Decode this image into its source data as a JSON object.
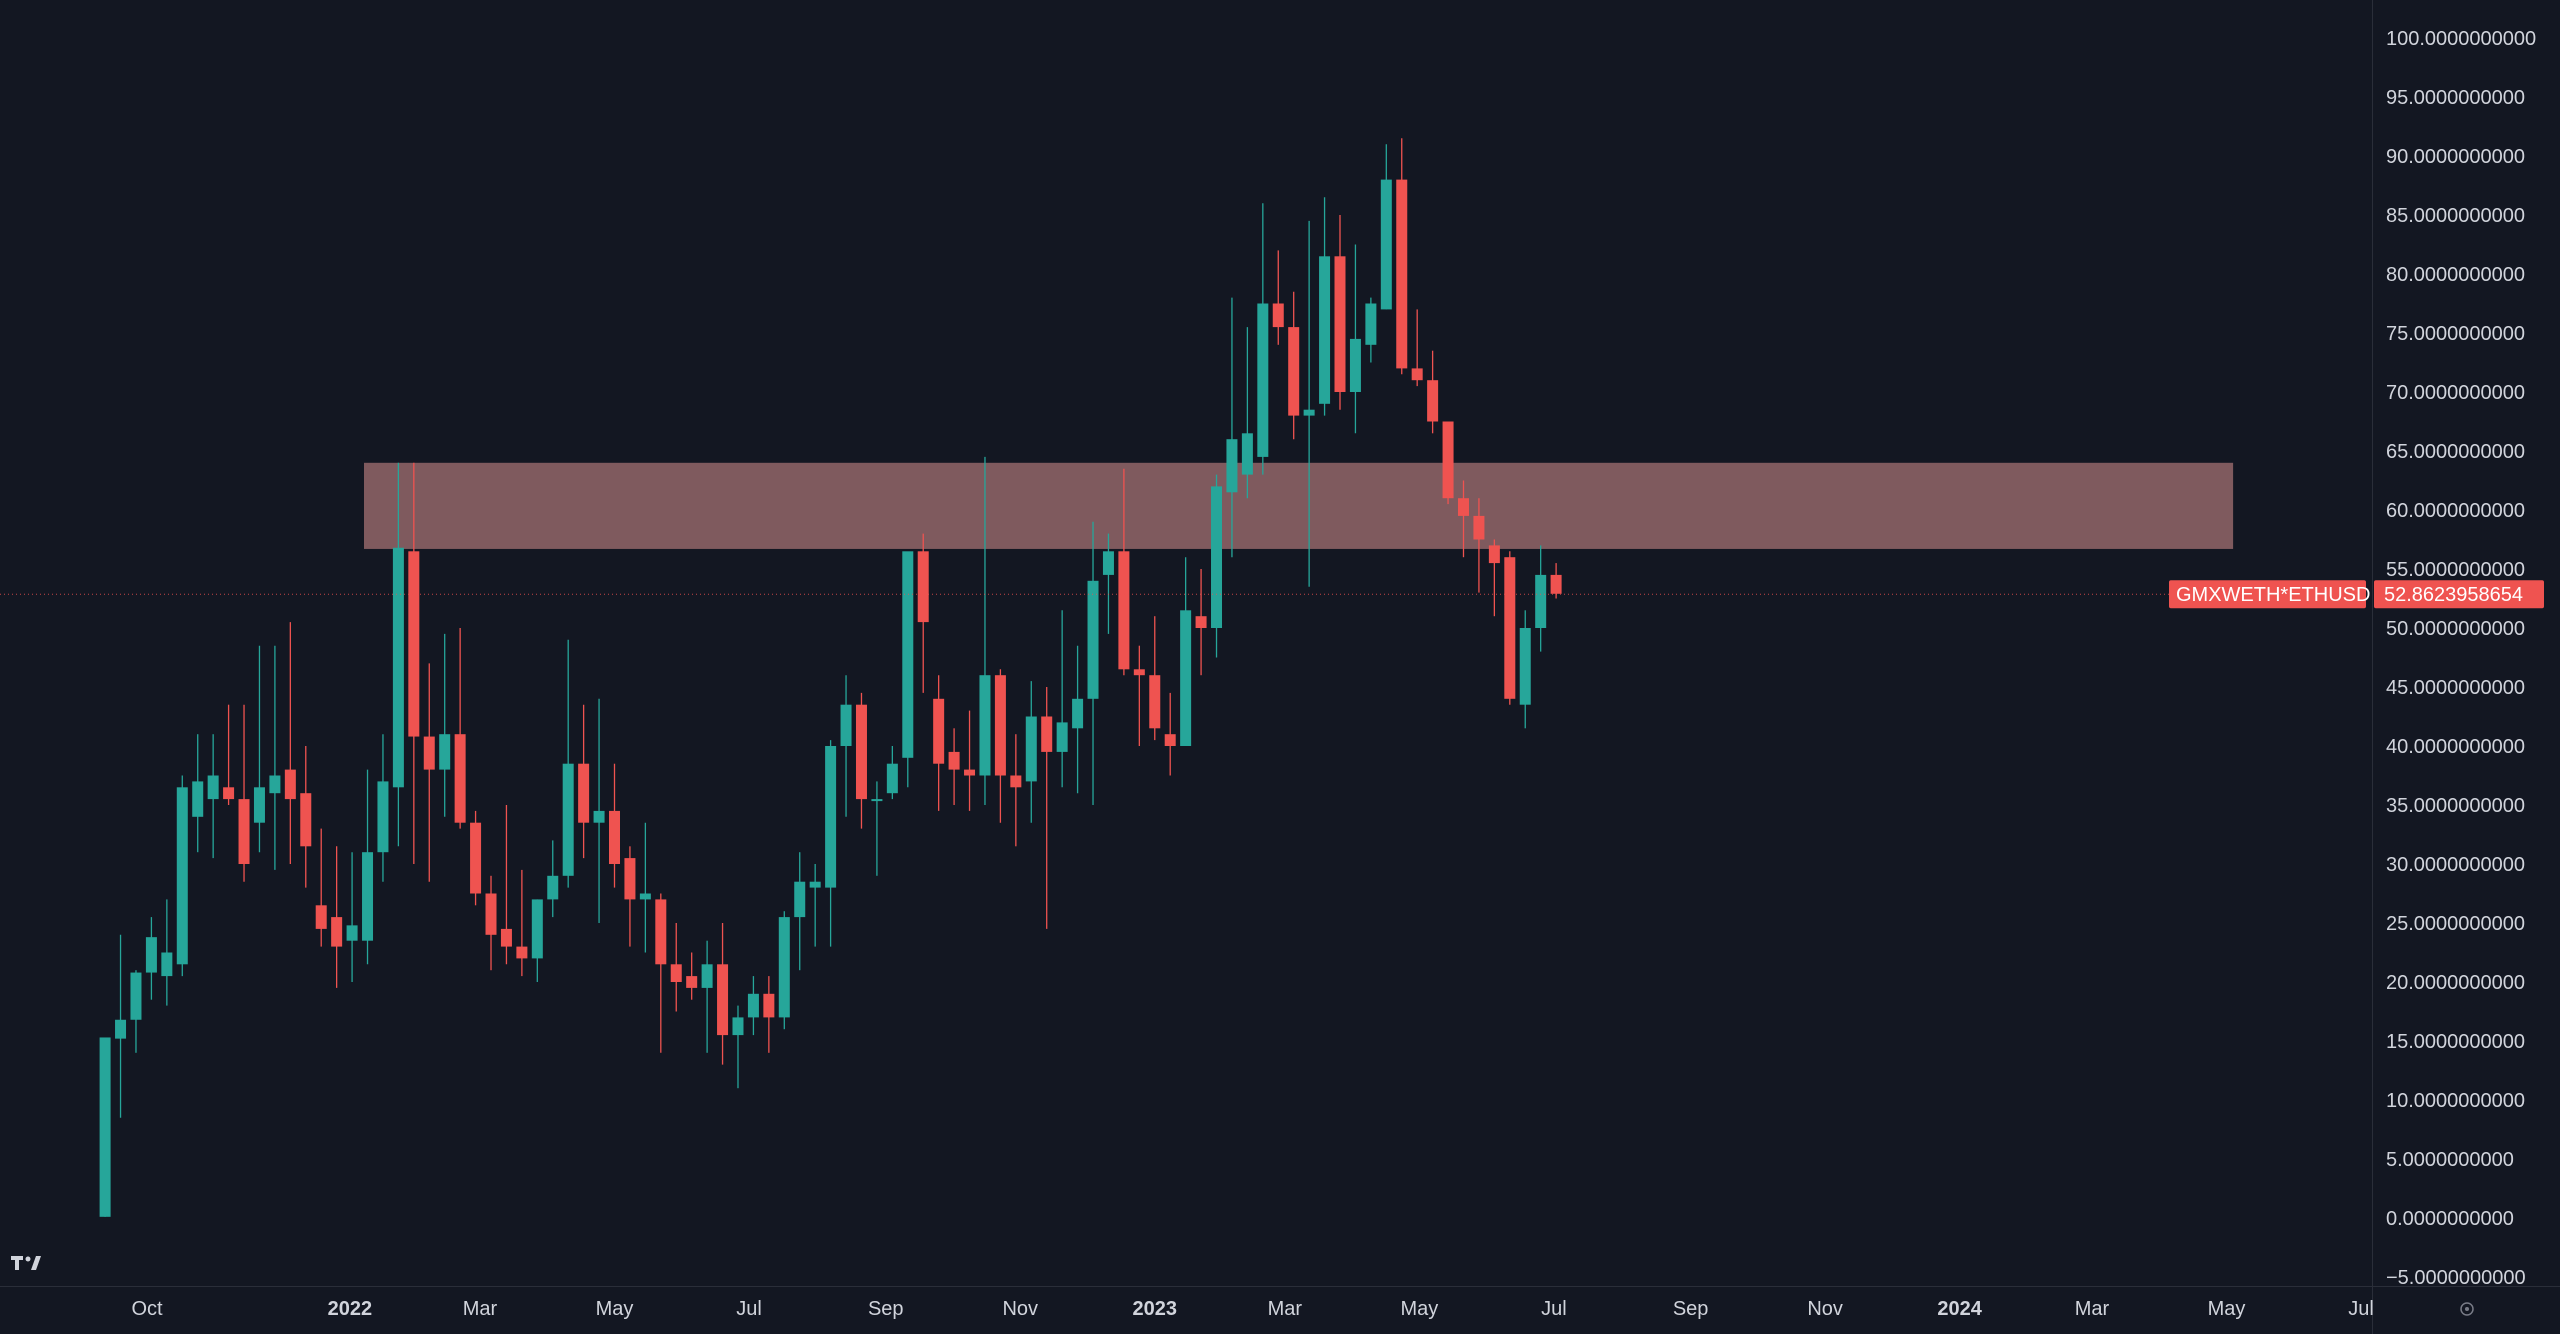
{
  "chart_data": {
    "type": "candlestick",
    "symbol": "GMXWETH*ETHUSD",
    "last_price_label": "52.8623958654",
    "last_price": 52.8623958654,
    "ylim": [
      -5,
      100
    ],
    "y_ticks": [
      {
        "value": 100,
        "label": "100.0000000000"
      },
      {
        "value": 95,
        "label": "95.0000000000"
      },
      {
        "value": 90,
        "label": "90.0000000000"
      },
      {
        "value": 85,
        "label": "85.0000000000"
      },
      {
        "value": 80,
        "label": "80.0000000000"
      },
      {
        "value": 75,
        "label": "75.0000000000"
      },
      {
        "value": 70,
        "label": "70.0000000000"
      },
      {
        "value": 65,
        "label": "65.0000000000"
      },
      {
        "value": 60,
        "label": "60.0000000000"
      },
      {
        "value": 55,
        "label": "55.0000000000"
      },
      {
        "value": 50,
        "label": "50.0000000000"
      },
      {
        "value": 45,
        "label": "45.0000000000"
      },
      {
        "value": 40,
        "label": "40.0000000000"
      },
      {
        "value": 35,
        "label": "35.0000000000"
      },
      {
        "value": 30,
        "label": "30.0000000000"
      },
      {
        "value": 25,
        "label": "25.0000000000"
      },
      {
        "value": 20,
        "label": "20.0000000000"
      },
      {
        "value": 15,
        "label": "15.0000000000"
      },
      {
        "value": 10,
        "label": "10.0000000000"
      },
      {
        "value": 5,
        "label": "5.0000000000"
      },
      {
        "value": 0,
        "label": "0.0000000000"
      },
      {
        "value": -5,
        "label": "−5.0000000000"
      }
    ],
    "x_ticks": [
      {
        "date": "2021-10-01",
        "label": "Oct",
        "bold": false
      },
      {
        "date": "2022-01-01",
        "label": "2022",
        "bold": true
      },
      {
        "date": "2022-03-01",
        "label": "Mar",
        "bold": false
      },
      {
        "date": "2022-05-01",
        "label": "May",
        "bold": false
      },
      {
        "date": "2022-07-01",
        "label": "Jul",
        "bold": false
      },
      {
        "date": "2022-09-01",
        "label": "Sep",
        "bold": false
      },
      {
        "date": "2022-11-01",
        "label": "Nov",
        "bold": false
      },
      {
        "date": "2023-01-01",
        "label": "2023",
        "bold": true
      },
      {
        "date": "2023-03-01",
        "label": "Mar",
        "bold": false
      },
      {
        "date": "2023-05-01",
        "label": "May",
        "bold": false
      },
      {
        "date": "2023-07-01",
        "label": "Jul",
        "bold": false
      },
      {
        "date": "2023-09-01",
        "label": "Sep",
        "bold": false
      },
      {
        "date": "2023-11-01",
        "label": "Nov",
        "bold": false
      },
      {
        "date": "2024-01-01",
        "label": "2024",
        "bold": true
      },
      {
        "date": "2024-03-01",
        "label": "Mar",
        "bold": false
      },
      {
        "date": "2024-05-01",
        "label": "May",
        "bold": false
      },
      {
        "date": "2024-07-01",
        "label": "Jul",
        "bold": false
      }
    ],
    "zone": {
      "y_low": 56.7,
      "y_high": 64.0,
      "x_start": "2022-01-01",
      "x_end": "2024-05-04",
      "color": "#f28b86"
    },
    "colors": {
      "up": "#26a69a",
      "down": "#ef5350",
      "background": "#131722",
      "zone": "#7f5a5e",
      "text": "#d1d4dc"
    },
    "candles": [
      {
        "date": "2021-09-12",
        "o": 0.1,
        "h": 15.3,
        "l": 0.1,
        "c": 15.3
      },
      {
        "date": "2021-09-19",
        "o": 15.2,
        "h": 24.0,
        "l": 8.5,
        "c": 16.8
      },
      {
        "date": "2021-09-26",
        "o": 16.8,
        "h": 21.0,
        "l": 14.0,
        "c": 20.8
      },
      {
        "date": "2021-10-03",
        "o": 20.8,
        "h": 25.5,
        "l": 18.5,
        "c": 23.8
      },
      {
        "date": "2021-10-10",
        "o": 20.5,
        "h": 27.0,
        "l": 18.0,
        "c": 22.5
      },
      {
        "date": "2021-10-17",
        "o": 21.5,
        "h": 37.5,
        "l": 20.5,
        "c": 36.5
      },
      {
        "date": "2021-10-24",
        "o": 34.0,
        "h": 41.0,
        "l": 31.0,
        "c": 37.0
      },
      {
        "date": "2021-10-31",
        "o": 35.5,
        "h": 41.0,
        "l": 30.5,
        "c": 37.5
      },
      {
        "date": "2021-11-07",
        "o": 36.5,
        "h": 43.5,
        "l": 35.0,
        "c": 35.5
      },
      {
        "date": "2021-11-14",
        "o": 35.5,
        "h": 43.5,
        "l": 28.5,
        "c": 30.0
      },
      {
        "date": "2021-11-21",
        "o": 33.5,
        "h": 48.5,
        "l": 31.0,
        "c": 36.5
      },
      {
        "date": "2021-11-28",
        "o": 36.0,
        "h": 48.5,
        "l": 29.5,
        "c": 37.5
      },
      {
        "date": "2021-12-05",
        "o": 38.0,
        "h": 50.5,
        "l": 30.0,
        "c": 35.5
      },
      {
        "date": "2021-12-12",
        "o": 36.0,
        "h": 40.0,
        "l": 28.0,
        "c": 31.5
      },
      {
        "date": "2021-12-19",
        "o": 26.5,
        "h": 33.0,
        "l": 23.0,
        "c": 24.5
      },
      {
        "date": "2021-12-26",
        "o": 25.5,
        "h": 31.5,
        "l": 19.5,
        "c": 23.0
      },
      {
        "date": "2022-01-02",
        "o": 23.5,
        "h": 31.0,
        "l": 20.0,
        "c": 24.8
      },
      {
        "date": "2022-01-09",
        "o": 23.5,
        "h": 38.0,
        "l": 21.5,
        "c": 31.0
      },
      {
        "date": "2022-01-16",
        "o": 31.0,
        "h": 41.0,
        "l": 28.5,
        "c": 37.0
      },
      {
        "date": "2022-01-23",
        "o": 36.5,
        "h": 64.0,
        "l": 31.5,
        "c": 56.8
      },
      {
        "date": "2022-01-30",
        "o": 56.5,
        "h": 64.0,
        "l": 30.0,
        "c": 40.8
      },
      {
        "date": "2022-02-06",
        "o": 40.8,
        "h": 47.0,
        "l": 28.5,
        "c": 38.0
      },
      {
        "date": "2022-02-13",
        "o": 38.0,
        "h": 49.5,
        "l": 34.0,
        "c": 41.0
      },
      {
        "date": "2022-02-20",
        "o": 41.0,
        "h": 50.0,
        "l": 33.0,
        "c": 33.5
      },
      {
        "date": "2022-02-27",
        "o": 33.5,
        "h": 34.5,
        "l": 26.5,
        "c": 27.5
      },
      {
        "date": "2022-03-06",
        "o": 27.5,
        "h": 29.0,
        "l": 21.0,
        "c": 24.0
      },
      {
        "date": "2022-03-13",
        "o": 24.5,
        "h": 35.0,
        "l": 21.5,
        "c": 23.0
      },
      {
        "date": "2022-03-20",
        "o": 23.0,
        "h": 29.5,
        "l": 20.5,
        "c": 22.0
      },
      {
        "date": "2022-03-27",
        "o": 22.0,
        "h": 27.0,
        "l": 20.0,
        "c": 27.0
      },
      {
        "date": "2022-04-03",
        "o": 27.0,
        "h": 32.0,
        "l": 25.5,
        "c": 29.0
      },
      {
        "date": "2022-04-10",
        "o": 29.0,
        "h": 49.0,
        "l": 28.0,
        "c": 38.5
      },
      {
        "date": "2022-04-17",
        "o": 38.5,
        "h": 43.5,
        "l": 30.5,
        "c": 33.5
      },
      {
        "date": "2022-04-24",
        "o": 33.5,
        "h": 44.0,
        "l": 25.0,
        "c": 34.5
      },
      {
        "date": "2022-05-01",
        "o": 34.5,
        "h": 38.5,
        "l": 28.0,
        "c": 30.0
      },
      {
        "date": "2022-05-08",
        "o": 30.5,
        "h": 31.5,
        "l": 23.0,
        "c": 27.0
      },
      {
        "date": "2022-05-15",
        "o": 27.0,
        "h": 33.5,
        "l": 22.5,
        "c": 27.5
      },
      {
        "date": "2022-05-22",
        "o": 27.0,
        "h": 27.5,
        "l": 14.0,
        "c": 21.5
      },
      {
        "date": "2022-05-29",
        "o": 21.5,
        "h": 25.0,
        "l": 17.5,
        "c": 20.0
      },
      {
        "date": "2022-06-05",
        "o": 20.5,
        "h": 22.5,
        "l": 18.5,
        "c": 19.5
      },
      {
        "date": "2022-06-12",
        "o": 19.5,
        "h": 23.5,
        "l": 14.0,
        "c": 21.5
      },
      {
        "date": "2022-06-19",
        "o": 21.5,
        "h": 25.0,
        "l": 13.0,
        "c": 15.5
      },
      {
        "date": "2022-06-26",
        "o": 15.5,
        "h": 18.0,
        "l": 11.0,
        "c": 17.0
      },
      {
        "date": "2022-07-03",
        "o": 17.0,
        "h": 20.5,
        "l": 15.5,
        "c": 19.0
      },
      {
        "date": "2022-07-10",
        "o": 19.0,
        "h": 20.5,
        "l": 14.0,
        "c": 17.0
      },
      {
        "date": "2022-07-17",
        "o": 17.0,
        "h": 26.0,
        "l": 16.0,
        "c": 25.5
      },
      {
        "date": "2022-07-24",
        "o": 25.5,
        "h": 31.0,
        "l": 21.0,
        "c": 28.5
      },
      {
        "date": "2022-07-31",
        "o": 28.0,
        "h": 30.0,
        "l": 23.0,
        "c": 28.5
      },
      {
        "date": "2022-08-07",
        "o": 28.0,
        "h": 40.5,
        "l": 23.0,
        "c": 40.0
      },
      {
        "date": "2022-08-14",
        "o": 40.0,
        "h": 46.0,
        "l": 34.0,
        "c": 43.5
      },
      {
        "date": "2022-08-21",
        "o": 43.5,
        "h": 44.5,
        "l": 33.0,
        "c": 35.5
      },
      {
        "date": "2022-08-28",
        "o": 35.5,
        "h": 37.0,
        "l": 29.0,
        "c": 35.5
      },
      {
        "date": "2022-09-04",
        "o": 36.0,
        "h": 40.0,
        "l": 35.5,
        "c": 38.5
      },
      {
        "date": "2022-09-11",
        "o": 39.0,
        "h": 56.0,
        "l": 36.5,
        "c": 56.5
      },
      {
        "date": "2022-09-18",
        "o": 56.5,
        "h": 58.0,
        "l": 44.5,
        "c": 50.5
      },
      {
        "date": "2022-09-25",
        "o": 44.0,
        "h": 46.0,
        "l": 34.5,
        "c": 38.5
      },
      {
        "date": "2022-10-02",
        "o": 39.5,
        "h": 41.5,
        "l": 35.0,
        "c": 38.0
      },
      {
        "date": "2022-10-09",
        "o": 38.0,
        "h": 43.0,
        "l": 34.5,
        "c": 37.5
      },
      {
        "date": "2022-10-16",
        "o": 37.5,
        "h": 64.5,
        "l": 35.0,
        "c": 46.0
      },
      {
        "date": "2022-10-23",
        "o": 46.0,
        "h": 46.5,
        "l": 33.5,
        "c": 37.5
      },
      {
        "date": "2022-10-30",
        "o": 37.5,
        "h": 41.0,
        "l": 31.5,
        "c": 36.5
      },
      {
        "date": "2022-11-06",
        "o": 37.0,
        "h": 45.5,
        "l": 33.5,
        "c": 42.5
      },
      {
        "date": "2022-11-13",
        "o": 42.5,
        "h": 45.0,
        "l": 24.5,
        "c": 39.5
      },
      {
        "date": "2022-11-20",
        "o": 39.5,
        "h": 51.5,
        "l": 36.5,
        "c": 42.0
      },
      {
        "date": "2022-11-27",
        "o": 41.5,
        "h": 48.5,
        "l": 36.0,
        "c": 44.0
      },
      {
        "date": "2022-12-04",
        "o": 44.0,
        "h": 59.0,
        "l": 35.0,
        "c": 54.0
      },
      {
        "date": "2022-12-11",
        "o": 54.5,
        "h": 58.0,
        "l": 49.5,
        "c": 56.5
      },
      {
        "date": "2022-12-18",
        "o": 56.5,
        "h": 63.5,
        "l": 46.0,
        "c": 46.5
      },
      {
        "date": "2022-12-25",
        "o": 46.5,
        "h": 48.5,
        "l": 40.0,
        "c": 46.0
      },
      {
        "date": "2023-01-01",
        "o": 46.0,
        "h": 51.0,
        "l": 40.5,
        "c": 41.5
      },
      {
        "date": "2023-01-08",
        "o": 41.0,
        "h": 44.5,
        "l": 37.5,
        "c": 40.0
      },
      {
        "date": "2023-01-15",
        "o": 40.0,
        "h": 56.0,
        "l": 40.0,
        "c": 51.5
      },
      {
        "date": "2023-01-22",
        "o": 51.0,
        "h": 55.0,
        "l": 46.0,
        "c": 50.0
      },
      {
        "date": "2023-01-29",
        "o": 50.0,
        "h": 63.0,
        "l": 47.5,
        "c": 62.0
      },
      {
        "date": "2023-02-05",
        "o": 61.5,
        "h": 78.0,
        "l": 56.0,
        "c": 66.0
      },
      {
        "date": "2023-02-12",
        "o": 63.0,
        "h": 75.5,
        "l": 61.0,
        "c": 66.5
      },
      {
        "date": "2023-02-19",
        "o": 64.5,
        "h": 86.0,
        "l": 63.0,
        "c": 77.5
      },
      {
        "date": "2023-02-26",
        "o": 77.5,
        "h": 82.0,
        "l": 74.0,
        "c": 75.5
      },
      {
        "date": "2023-03-05",
        "o": 75.5,
        "h": 78.5,
        "l": 66.0,
        "c": 68.0
      },
      {
        "date": "2023-03-12",
        "o": 68.0,
        "h": 84.5,
        "l": 53.5,
        "c": 68.5
      },
      {
        "date": "2023-03-19",
        "o": 69.0,
        "h": 86.5,
        "l": 68.0,
        "c": 81.5
      },
      {
        "date": "2023-03-26",
        "o": 81.5,
        "h": 85.0,
        "l": 68.5,
        "c": 70.0
      },
      {
        "date": "2023-04-02",
        "o": 70.0,
        "h": 82.5,
        "l": 66.5,
        "c": 74.5
      },
      {
        "date": "2023-04-09",
        "o": 74.0,
        "h": 78.0,
        "l": 72.5,
        "c": 77.5
      },
      {
        "date": "2023-04-16",
        "o": 77.0,
        "h": 91.0,
        "l": 77.0,
        "c": 88.0
      },
      {
        "date": "2023-04-23",
        "o": 88.0,
        "h": 91.5,
        "l": 71.5,
        "c": 72.0
      },
      {
        "date": "2023-04-30",
        "o": 72.0,
        "h": 77.0,
        "l": 70.5,
        "c": 71.0
      },
      {
        "date": "2023-05-07",
        "o": 71.0,
        "h": 73.5,
        "l": 66.5,
        "c": 67.5
      },
      {
        "date": "2023-05-14",
        "o": 67.5,
        "h": 67.5,
        "l": 60.5,
        "c": 61.0
      },
      {
        "date": "2023-05-21",
        "o": 61.0,
        "h": 62.5,
        "l": 56.0,
        "c": 59.5
      },
      {
        "date": "2023-05-28",
        "o": 59.5,
        "h": 61.0,
        "l": 53.0,
        "c": 57.5
      },
      {
        "date": "2023-06-04",
        "o": 57.0,
        "h": 57.5,
        "l": 51.0,
        "c": 55.5
      },
      {
        "date": "2023-06-11",
        "o": 56.0,
        "h": 56.5,
        "l": 43.5,
        "c": 44.0
      },
      {
        "date": "2023-06-18",
        "o": 43.5,
        "h": 51.5,
        "l": 41.5,
        "c": 50.0
      },
      {
        "date": "2023-06-25",
        "o": 50.0,
        "h": 57.0,
        "l": 48.0,
        "c": 54.5
      },
      {
        "date": "2023-07-02",
        "o": 54.5,
        "h": 55.5,
        "l": 52.5,
        "c": 52.9
      }
    ]
  }
}
